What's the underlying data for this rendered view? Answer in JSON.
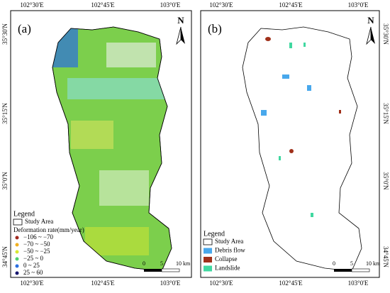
{
  "axes": {
    "lon_labels": [
      "102°30'E",
      "102°45'E",
      "103°0'E"
    ],
    "lat_labels": [
      "35°30'N",
      "35°15'N",
      "35°0'N",
      "34°45'N"
    ]
  },
  "panels": [
    {
      "label": "(a)",
      "north": "N",
      "legend": {
        "title": "Legend",
        "study_area": "Study Area",
        "subtitle": "Deformation rate(mm/year)",
        "items": [
          {
            "label": "−106 ~ −70",
            "color": "#a0281e"
          },
          {
            "label": "−70 ~ −50",
            "color": "#f0b020"
          },
          {
            "label": "−50 ~ −25",
            "color": "#d8e830"
          },
          {
            "label": "−25 ~ 0",
            "color": "#50d070"
          },
          {
            "label": "0 ~ 25",
            "color": "#2a6ee0"
          },
          {
            "label": "25 ~ 60",
            "color": "#16166e"
          }
        ]
      },
      "scale": [
        "0",
        "5",
        "10 km"
      ]
    },
    {
      "label": "(b)",
      "north": "N",
      "legend": {
        "title": "Legend",
        "study_area": "Study Area",
        "items": [
          {
            "label": "Debris flow",
            "color": "#48a8ec"
          },
          {
            "label": "Collapse",
            "color": "#a0301a"
          },
          {
            "label": "Landslide",
            "color": "#40d8a0"
          }
        ]
      },
      "scale": [
        "0",
        "5",
        "10 km"
      ]
    }
  ]
}
